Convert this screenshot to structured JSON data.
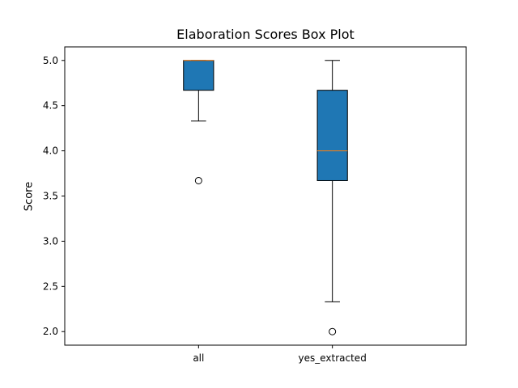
{
  "chart_data": {
    "type": "box",
    "title": "Elaboration Scores Box Plot",
    "xlabel": "",
    "ylabel": "Score",
    "ylim": [
      1.85,
      5.15
    ],
    "yticks": [
      "2.0",
      "2.5",
      "3.0",
      "3.5",
      "4.0",
      "4.5",
      "5.0"
    ],
    "grid": false,
    "box_color": "#1f77b4",
    "median_color": "#ff7f0e",
    "categories": [
      "all",
      "yes_extracted"
    ],
    "boxes": [
      {
        "label": "all",
        "whisker_low": 4.33,
        "q1": 4.67,
        "median": 5.0,
        "q3": 5.0,
        "whisker_high": 5.0,
        "outliers": [
          3.67
        ]
      },
      {
        "label": "yes_extracted",
        "whisker_low": 2.33,
        "q1": 3.67,
        "median": 4.0,
        "q3": 4.67,
        "whisker_high": 5.0,
        "outliers": [
          2.0
        ]
      }
    ]
  }
}
